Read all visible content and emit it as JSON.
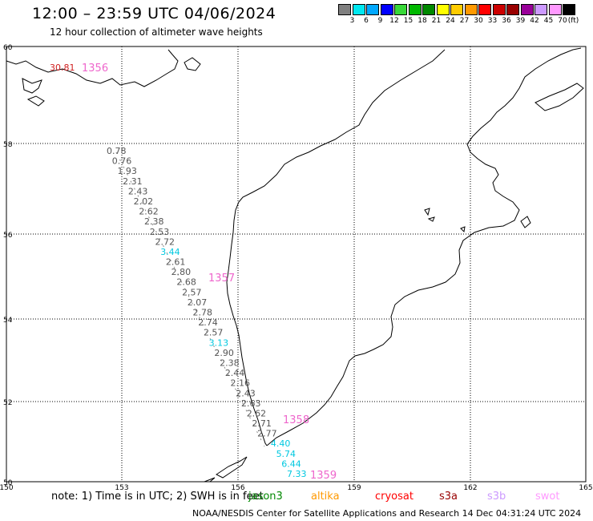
{
  "header": {
    "title": "12:00 – 23:59 UTC 04/06/2024",
    "subtitle": "12 hour collection of altimeter wave heights"
  },
  "color_scale": {
    "unit_label": "(ft)",
    "bins": [
      {
        "label": "3",
        "color": "#808080"
      },
      {
        "label": "6",
        "color": "#00e8f0"
      },
      {
        "label": "9",
        "color": "#00a8ff"
      },
      {
        "label": "12",
        "color": "#0000ff"
      },
      {
        "label": "15",
        "color": "#38d838"
      },
      {
        "label": "18",
        "color": "#00b800"
      },
      {
        "label": "21",
        "color": "#008800"
      },
      {
        "label": "24",
        "color": "#ffff00"
      },
      {
        "label": "27",
        "color": "#ffcc00"
      },
      {
        "label": "30",
        "color": "#ff9900"
      },
      {
        "label": "33",
        "color": "#ff0000"
      },
      {
        "label": "36",
        "color": "#cc0000"
      },
      {
        "label": "39",
        "color": "#990000"
      },
      {
        "label": "42",
        "color": "#990099"
      },
      {
        "label": "45",
        "color": "#cc99ff"
      },
      {
        "label": "70",
        "color": "#ff99ff"
      },
      {
        "label": "",
        "color": "#000000"
      }
    ]
  },
  "axes": {
    "lon_ticks": [
      "150",
      "153",
      "156",
      "159",
      "162",
      "165"
    ],
    "lat_ticks": [
      "60",
      "58",
      "56",
      "54",
      "52",
      "50"
    ]
  },
  "orbit_labels": [
    "1356",
    "1357",
    "1358",
    "1359"
  ],
  "wave_heights": [
    {
      "value": "30.81",
      "level": "red"
    },
    {
      "value": "0.78",
      "level": "low"
    },
    {
      "value": "0.76",
      "level": "low"
    },
    {
      "value": "1.93",
      "level": "low"
    },
    {
      "value": "2.31",
      "level": "low"
    },
    {
      "value": "2.43",
      "level": "low"
    },
    {
      "value": "2.02",
      "level": "low"
    },
    {
      "value": "2.62",
      "level": "low"
    },
    {
      "value": "2.38",
      "level": "low"
    },
    {
      "value": "2.53",
      "level": "low"
    },
    {
      "value": "2.72",
      "level": "low"
    },
    {
      "value": "3.44",
      "level": "hi"
    },
    {
      "value": "2.61",
      "level": "low"
    },
    {
      "value": "2.80",
      "level": "low"
    },
    {
      "value": "2.68",
      "level": "low"
    },
    {
      "value": "2.57",
      "level": "low"
    },
    {
      "value": "2.07",
      "level": "low"
    },
    {
      "value": "2.78",
      "level": "low"
    },
    {
      "value": "2.74",
      "level": "low"
    },
    {
      "value": "2.57",
      "level": "low"
    },
    {
      "value": "3.13",
      "level": "hi"
    },
    {
      "value": "2.90",
      "level": "low"
    },
    {
      "value": "2.38",
      "level": "low"
    },
    {
      "value": "2.44",
      "level": "low"
    },
    {
      "value": "2.16",
      "level": "low"
    },
    {
      "value": "2.43",
      "level": "low"
    },
    {
      "value": "2.63",
      "level": "low"
    },
    {
      "value": "2.62",
      "level": "low"
    },
    {
      "value": "2.71",
      "level": "low"
    },
    {
      "value": "2.77",
      "level": "low"
    },
    {
      "value": "4.40",
      "level": "hi"
    },
    {
      "value": "5.74",
      "level": "hi"
    },
    {
      "value": "6.44",
      "level": "hi"
    },
    {
      "value": "7.33",
      "level": "hi"
    }
  ],
  "note": "note: 1) Time is in UTC; 2) SWH is in feet",
  "satellites": [
    {
      "name": "jason3",
      "color": "#008800"
    },
    {
      "name": "altika",
      "color": "#ff9900"
    },
    {
      "name": "cryosat",
      "color": "#ff0000"
    },
    {
      "name": "s3a",
      "color": "#990000"
    },
    {
      "name": "s3b",
      "color": "#cc99ff"
    },
    {
      "name": "swot",
      "color": "#ff99ff"
    }
  ],
  "footer": "NOAA/NESDIS Center for Satellite Applications and Research   14 Dec 04:31:24 UTC 2024"
}
